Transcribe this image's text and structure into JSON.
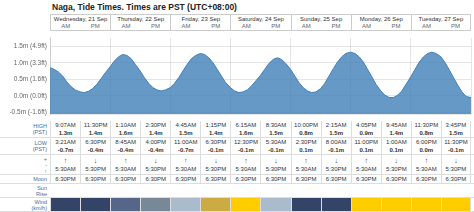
{
  "chart_data": {
    "type": "area",
    "title": "Naga, Tide Times. Times are PST (UTC+08:00)",
    "x": [
      0,
      0.07,
      0.14,
      0.21,
      0.28,
      0.35,
      0.42,
      0.5,
      0.57,
      0.64,
      0.71,
      0.78,
      0.85,
      0.92,
      1.0,
      1.07,
      1.14,
      1.21,
      1.28,
      1.35,
      1.42,
      1.5,
      1.57,
      1.64,
      1.71,
      1.78,
      1.85,
      1.92,
      2.0,
      2.07,
      2.14,
      2.21,
      2.28,
      2.35,
      2.42,
      2.5,
      2.57,
      2.64,
      2.71,
      2.78,
      2.85,
      2.92,
      3.0,
      3.07,
      3.14,
      3.21,
      3.28,
      3.35,
      3.42,
      3.5,
      3.57,
      3.64,
      3.71,
      3.78,
      3.85,
      3.92,
      4.0,
      4.07,
      4.14,
      4.21,
      4.28,
      4.35,
      4.42,
      4.5,
      4.57,
      4.64,
      4.71,
      4.78,
      4.85,
      4.92,
      5.0,
      5.07,
      5.14,
      5.21,
      5.28,
      5.35,
      5.42,
      5.5,
      5.57,
      5.64,
      5.71,
      5.78,
      5.85,
      5.92,
      6.0,
      6.07,
      6.14,
      6.21,
      6.28,
      6.35,
      6.42,
      6.5,
      6.57,
      6.64,
      6.71,
      6.78,
      6.85,
      6.92,
      7.0
    ],
    "values": [
      0.85,
      0.8,
      0.72,
      0.6,
      0.42,
      0.28,
      0.18,
      0.12,
      0.1,
      0.14,
      0.22,
      0.35,
      0.52,
      0.7,
      0.88,
      1.05,
      1.18,
      1.25,
      1.22,
      1.12,
      0.95,
      0.75,
      0.55,
      0.38,
      0.25,
      0.18,
      0.15,
      0.18,
      0.25,
      0.38,
      0.55,
      0.75,
      0.95,
      1.12,
      1.22,
      1.28,
      1.25,
      1.15,
      1.0,
      0.8,
      0.6,
      0.4,
      0.25,
      0.15,
      0.1,
      0.12,
      0.18,
      0.3,
      0.45,
      0.62,
      0.8,
      0.98,
      1.1,
      1.15,
      1.1,
      0.98,
      0.8,
      0.6,
      0.4,
      0.25,
      0.15,
      0.1,
      0.12,
      0.22,
      0.38,
      0.6,
      0.82,
      1.02,
      1.18,
      1.28,
      1.32,
      1.28,
      1.18,
      1.02,
      0.8,
      0.58,
      0.35,
      0.15,
      0.02,
      -0.05,
      -0.05,
      0.02,
      0.15,
      0.35,
      0.58,
      0.8,
      1.02,
      1.18,
      1.28,
      1.32,
      1.28,
      1.18,
      1.0,
      0.78,
      0.55,
      0.32,
      0.12,
      -0.02,
      -0.05
    ],
    "color": "#4080b8",
    "xlim": [
      0,
      7
    ],
    "xticks": [
      0,
      1,
      2,
      3,
      4,
      5,
      6,
      7
    ],
    "ylim": [
      -0.55,
      1.75
    ],
    "yticks": [
      {
        "value": -0.5,
        "label": "-0.5m (-1.6ft)"
      },
      {
        "value": 0.0,
        "label": "0.0m (0.0ft)"
      },
      {
        "value": 0.5,
        "label": "0.5m (1.6ft)"
      },
      {
        "value": 1.0,
        "label": "1.0m (3.3ft)"
      },
      {
        "value": 1.5,
        "label": "1.5m (4.9ft)"
      }
    ],
    "grid": true,
    "tick_labels": "y",
    "header": {
      "days": [
        "Wednesday, 21 Sep",
        "Thursday, 22 Sep",
        "Friday, 23 Sep",
        "Saturday, 24 Sep",
        "Sunday, 25 Sep",
        "Monday, 26 Sep",
        "Tuesday, 27 Sep"
      ],
      "parts": [
        "AM",
        "PM"
      ]
    },
    "table": [
      {
        "label": "HIGH\n(PST)",
        "times": [
          "9:07AM",
          "11:30PM",
          "1:10AM",
          "2:30PM",
          "4:45AM",
          "1:15PM",
          "6:15AM",
          "8:30AM",
          "10:00PM",
          "2:15AM",
          "4:05PM",
          "9:45AM",
          "11:30PM",
          "3:45PM"
        ],
        "values": [
          1.3,
          1.4,
          1.6,
          1.4,
          1.5,
          1.4,
          1.6,
          1.5,
          0.8,
          1.5,
          0.9,
          1.4,
          0.8,
          1.5
        ],
        "value_labels": [
          "1.3m",
          "1.4m",
          "1.6m",
          "1.4m",
          "1.5m",
          "1.4m",
          "1.6m",
          "1.5m",
          "0.8m",
          "1.5m",
          "0.9m",
          "1.4m",
          "0.8m",
          "1.5m"
        ]
      },
      {
        "label": "LOW\n(PST)",
        "times": [
          "3:21AM",
          "6:30PM",
          "8:45AM",
          "4:00PM",
          "11:00AM",
          "6:30PM",
          "12:30PM",
          "5:30AM",
          "2:30PM",
          "8:00AM",
          "11:00PM",
          "1:00AM",
          "6:00PM",
          "11:30PM"
        ],
        "values": [
          -0.7,
          -0.4,
          -0.4,
          -0.4,
          -0.7,
          -0.1,
          -0.1,
          -0.1,
          0.1,
          -0.1,
          0.1,
          0.1,
          0.0,
          -0.1
        ],
        "value_labels": [
          "-0.7m",
          "-0.4m",
          "-0.4m",
          "-0.4m",
          "-0.7m",
          "-0.1m",
          "-0.1m",
          "-0.1m",
          "0.1m",
          "-0.1m",
          "0.1m",
          "0.1m",
          "0.0m",
          "-0.1m"
        ]
      },
      {
        "label": "+\n-\n↑",
        "symbols": [
          "↑",
          "↓",
          "↑",
          "↓",
          "↑",
          "↓",
          "↑",
          "↓",
          "↑",
          "↓",
          "↑",
          "↓",
          "↑",
          "↓"
        ],
        "times": [
          "5:30AM",
          "5:30PM",
          "5:30AM",
          "5:30PM",
          "5:30AM",
          "5:30PM",
          "5:30AM",
          "5:30PM",
          "5:30AM",
          "5:30PM",
          "5:30AM",
          "5:30PM",
          "5:30AM",
          "5:30PM"
        ]
      },
      {
        "label": "Moon",
        "times": [
          "6:30PM",
          "6:30PM",
          "6:30PM",
          "6:30PM",
          "6:30PM",
          "6:30PM",
          "6:30PM",
          "6:30PM",
          "6:30PM",
          "6:30PM",
          "6:30PM",
          "6:30PM",
          "6:30PM",
          "6:30PM"
        ]
      },
      {
        "label": "Sun\nRise"
      },
      {
        "label": "Wind\n(km/h)",
        "colors": [
          "#334466",
          "#334466",
          "#556688",
          "#778899",
          "#aabbcc",
          "#ccaa44",
          "#ffcc00",
          "#aabbcc",
          "#334466",
          "#334466",
          "#ffcc00",
          "#ffcc00",
          "#ffcc00",
          "#ffcc00"
        ]
      }
    ]
  }
}
